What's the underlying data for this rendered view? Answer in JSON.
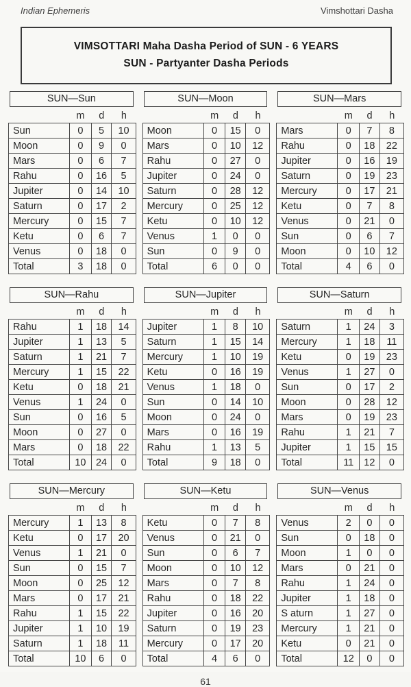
{
  "page": {
    "header_left": "Indian Ephemeris",
    "header_right": "Vimshottari Dasha",
    "title_line1": "VIMSOTTARI Maha Dasha Period of SUN - 6 YEARS",
    "title_line2": "SUN  -  Partyanter Dasha Periods",
    "page_number": "61"
  },
  "column_headers": [
    "m",
    "d",
    "h"
  ],
  "tables": [
    {
      "title": "SUN—Sun",
      "rows": [
        [
          "Sun",
          0,
          5,
          10
        ],
        [
          "Moon",
          0,
          9,
          0
        ],
        [
          "Mars",
          0,
          6,
          7
        ],
        [
          "Rahu",
          0,
          16,
          5
        ],
        [
          "Jupiter",
          0,
          14,
          10
        ],
        [
          "Saturn",
          0,
          17,
          2
        ],
        [
          "Mercury",
          0,
          15,
          7
        ],
        [
          "Ketu",
          0,
          6,
          7
        ],
        [
          "Venus",
          0,
          18,
          0
        ],
        [
          "Total",
          3,
          18,
          0
        ]
      ]
    },
    {
      "title": "SUN—Moon",
      "rows": [
        [
          "Moon",
          0,
          15,
          0
        ],
        [
          "Mars",
          0,
          10,
          12
        ],
        [
          "Rahu",
          0,
          27,
          0
        ],
        [
          "Jupiter",
          0,
          24,
          0
        ],
        [
          "Saturn",
          0,
          28,
          12
        ],
        [
          "Mercury",
          0,
          25,
          12
        ],
        [
          "Ketu",
          0,
          10,
          12
        ],
        [
          "Venus",
          1,
          0,
          0
        ],
        [
          "Sun",
          0,
          9,
          0
        ],
        [
          "Total",
          6,
          0,
          0
        ]
      ]
    },
    {
      "title": "SUN—Mars",
      "rows": [
        [
          "Mars",
          0,
          7,
          8
        ],
        [
          "Rahu",
          0,
          18,
          22
        ],
        [
          "Jupiter",
          0,
          16,
          19
        ],
        [
          "Saturn",
          0,
          19,
          23
        ],
        [
          "Mercury",
          0,
          17,
          21
        ],
        [
          "Ketu",
          0,
          7,
          8
        ],
        [
          "Venus",
          0,
          21,
          0
        ],
        [
          "Sun",
          0,
          6,
          7
        ],
        [
          "Moon",
          0,
          10,
          12
        ],
        [
          "Total",
          4,
          6,
          0
        ]
      ]
    },
    {
      "title": "SUN—Rahu",
      "rows": [
        [
          "Rahu",
          1,
          18,
          14
        ],
        [
          "Jupiter",
          1,
          13,
          5
        ],
        [
          "Saturn",
          1,
          21,
          7
        ],
        [
          "Mercury",
          1,
          15,
          22
        ],
        [
          "Ketu",
          0,
          18,
          21
        ],
        [
          "Venus",
          1,
          24,
          0
        ],
        [
          "Sun",
          0,
          16,
          5
        ],
        [
          "Moon",
          0,
          27,
          0
        ],
        [
          "Mars",
          0,
          18,
          22
        ],
        [
          "Total",
          10,
          24,
          0
        ]
      ]
    },
    {
      "title": "SUN—Jupiter",
      "rows": [
        [
          "Jupiter",
          1,
          8,
          10
        ],
        [
          "Saturn",
          1,
          15,
          14
        ],
        [
          "Mercury",
          1,
          10,
          19
        ],
        [
          "Ketu",
          0,
          16,
          19
        ],
        [
          "Venus",
          1,
          18,
          0
        ],
        [
          "Sun",
          0,
          14,
          10
        ],
        [
          "Moon",
          0,
          24,
          0
        ],
        [
          "Mars",
          0,
          16,
          19
        ],
        [
          "Rahu",
          1,
          13,
          5
        ],
        [
          "Total",
          9,
          18,
          0
        ]
      ]
    },
    {
      "title": "SUN—Saturn",
      "rows": [
        [
          "Saturn",
          1,
          24,
          3
        ],
        [
          "Mercury",
          1,
          18,
          11
        ],
        [
          "Ketu",
          0,
          19,
          23
        ],
        [
          "Venus",
          1,
          27,
          0
        ],
        [
          "Sun",
          0,
          17,
          2
        ],
        [
          "Moon",
          0,
          28,
          12
        ],
        [
          "Mars",
          0,
          19,
          23
        ],
        [
          "Rahu",
          1,
          21,
          7
        ],
        [
          "Jupiter",
          1,
          15,
          15
        ],
        [
          "Total",
          11,
          12,
          0
        ]
      ]
    },
    {
      "title": "SUN—Mercury",
      "rows": [
        [
          "Mercury",
          1,
          13,
          8
        ],
        [
          "Ketu",
          0,
          17,
          20
        ],
        [
          "Venus",
          1,
          21,
          0
        ],
        [
          "Sun",
          0,
          15,
          7
        ],
        [
          "Moon",
          0,
          25,
          12
        ],
        [
          "Mars",
          0,
          17,
          21
        ],
        [
          "Rahu",
          1,
          15,
          22
        ],
        [
          "Jupiter",
          1,
          10,
          19
        ],
        [
          "Saturn",
          1,
          18,
          11
        ],
        [
          "Total",
          10,
          6,
          0
        ]
      ]
    },
    {
      "title": "SUN—Ketu",
      "rows": [
        [
          "Ketu",
          0,
          7,
          8
        ],
        [
          "Venus",
          0,
          21,
          0
        ],
        [
          "Sun",
          0,
          6,
          7
        ],
        [
          "Moon",
          0,
          10,
          12
        ],
        [
          "Mars",
          0,
          7,
          8
        ],
        [
          "Rahu",
          0,
          18,
          22
        ],
        [
          "Jupiter",
          0,
          16,
          20
        ],
        [
          "Saturn",
          0,
          19,
          23
        ],
        [
          "Mercury",
          0,
          17,
          20
        ],
        [
          "Total",
          4,
          6,
          0
        ]
      ]
    },
    {
      "title": "SUN—Venus",
      "rows": [
        [
          "Venus",
          2,
          0,
          0
        ],
        [
          "Sun",
          0,
          18,
          0
        ],
        [
          "Moon",
          1,
          0,
          0
        ],
        [
          "Mars",
          0,
          21,
          0
        ],
        [
          "Rahu",
          1,
          24,
          0
        ],
        [
          "Jupiter",
          1,
          18,
          0
        ],
        [
          "S aturn",
          1,
          27,
          0
        ],
        [
          "Mercury",
          1,
          21,
          0
        ],
        [
          "Ketu",
          0,
          21,
          0
        ],
        [
          "Total",
          12,
          0,
          0
        ]
      ]
    }
  ]
}
